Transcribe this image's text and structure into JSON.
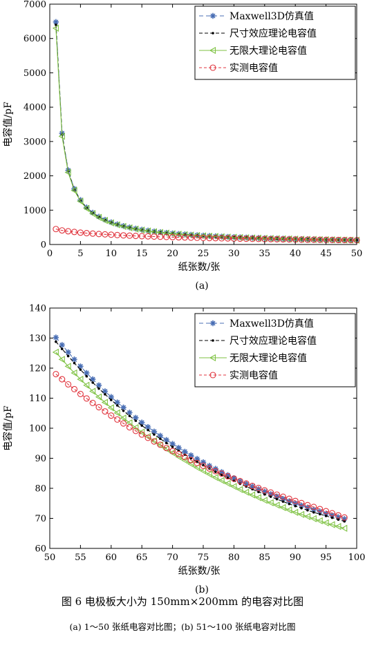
{
  "figure": {
    "caption": "图 6   电极板大小为 150mm×200mm 的电容对比图",
    "subcaption": "(a) 1～50 张纸电容对比图；(b) 51～100 张纸电容对比图"
  },
  "chart_data": [
    {
      "type": "line",
      "panel_label": "(a)",
      "xlabel": "纸张数/张",
      "ylabel": "电容值/pF",
      "xlim": [
        0,
        50
      ],
      "ylim": [
        0,
        7000
      ],
      "xticks": [
        0,
        5,
        10,
        15,
        20,
        25,
        30,
        35,
        40,
        45,
        50
      ],
      "yticks": [
        0,
        1000,
        2000,
        3000,
        4000,
        5000,
        6000,
        7000
      ],
      "legend_position": "top-right",
      "grid": false,
      "x": [
        1,
        2,
        3,
        4,
        5,
        6,
        7,
        8,
        9,
        10,
        11,
        12,
        13,
        14,
        15,
        16,
        17,
        18,
        19,
        20,
        21,
        22,
        23,
        24,
        25,
        26,
        27,
        28,
        29,
        30,
        31,
        32,
        33,
        34,
        35,
        36,
        37,
        38,
        39,
        40,
        41,
        42,
        43,
        44,
        45,
        46,
        47,
        48,
        49,
        50
      ],
      "series": [
        {
          "name": "Maxwell3D仿真值",
          "color": "#4a6fb5",
          "dash": "6,4",
          "marker": "star",
          "values": [
            6480,
            3240,
            2160,
            1620,
            1296,
            1080,
            926,
            810,
            720,
            648,
            589,
            540,
            498,
            463,
            432,
            405,
            381,
            360,
            341,
            324,
            309,
            295,
            282,
            270,
            259,
            249,
            240,
            231,
            223,
            216,
            209,
            203,
            196,
            191,
            185,
            180,
            175,
            171,
            166,
            162,
            158,
            154,
            151,
            147,
            144,
            141,
            138,
            135,
            132,
            130
          ]
        },
        {
          "name": "尺寸效应理论电容值",
          "color": "#000000",
          "dash": "5,3",
          "marker": "dot",
          "values": [
            6400,
            3200,
            2133,
            1600,
            1280,
            1067,
            914,
            800,
            711,
            640,
            582,
            533,
            492,
            457,
            427,
            400,
            376,
            356,
            337,
            320,
            305,
            291,
            278,
            267,
            256,
            246,
            237,
            229,
            221,
            213,
            206,
            200,
            194,
            188,
            183,
            178,
            173,
            168,
            164,
            160,
            156,
            152,
            149,
            145,
            142,
            139,
            136,
            133,
            131,
            128
          ]
        },
        {
          "name": "无限大理论电容值",
          "color": "#7ec242",
          "dash": "",
          "marker": "triangle-left",
          "values": [
            6300,
            3150,
            2100,
            1575,
            1260,
            1050,
            900,
            788,
            700,
            630,
            573,
            525,
            485,
            450,
            420,
            394,
            371,
            350,
            332,
            315,
            300,
            286,
            274,
            263,
            252,
            242,
            233,
            225,
            217,
            210,
            203,
            197,
            191,
            185,
            180,
            175,
            170,
            166,
            162,
            158,
            154,
            150,
            147,
            143,
            140,
            137,
            134,
            131,
            129,
            126
          ]
        },
        {
          "name": "实测电容值",
          "color": "#e0333c",
          "dash": "4,3",
          "marker": "circle",
          "values": [
            450,
            410,
            385,
            365,
            345,
            330,
            318,
            305,
            295,
            285,
            275,
            266,
            258,
            250,
            243,
            237,
            231,
            225,
            220,
            214,
            209,
            204,
            200,
            196,
            192,
            188,
            184,
            181,
            177,
            174,
            171,
            168,
            165,
            162,
            159,
            156,
            153,
            151,
            148,
            146,
            143,
            141,
            139,
            137,
            135,
            133,
            131,
            129,
            127,
            125
          ]
        }
      ]
    },
    {
      "type": "line",
      "panel_label": "(b)",
      "xlabel": "纸张数/张",
      "ylabel": "电容值/pF",
      "xlim": [
        50,
        100
      ],
      "ylim": [
        60,
        140
      ],
      "xticks": [
        50,
        55,
        60,
        65,
        70,
        75,
        80,
        85,
        90,
        95,
        100
      ],
      "yticks": [
        60,
        70,
        80,
        90,
        100,
        110,
        120,
        130,
        140
      ],
      "legend_position": "top-right",
      "grid": false,
      "x": [
        51,
        52,
        53,
        54,
        55,
        56,
        57,
        58,
        59,
        60,
        61,
        62,
        63,
        64,
        65,
        66,
        67,
        68,
        69,
        70,
        71,
        72,
        73,
        74,
        75,
        76,
        77,
        78,
        79,
        80,
        81,
        82,
        83,
        84,
        85,
        86,
        87,
        88,
        89,
        90,
        91,
        92,
        93,
        94,
        95,
        96,
        97,
        98
      ],
      "series": [
        {
          "name": "Maxwell3D仿真值",
          "color": "#4a6fb5",
          "dash": "6,4",
          "marker": "star",
          "values": [
            130.2,
            127.7,
            125.3,
            122.9,
            120.6,
            118.4,
            116.3,
            114.3,
            112.3,
            110.4,
            108.6,
            106.9,
            105.2,
            103.5,
            101.9,
            100.4,
            98.9,
            97.5,
            96.1,
            94.8,
            93.5,
            92.2,
            91.0,
            89.8,
            88.7,
            87.5,
            86.5,
            85.4,
            84.4,
            83.4,
            82.4,
            81.5,
            80.6,
            79.7,
            78.9,
            78.1,
            77.3,
            76.5,
            75.7,
            75.0,
            74.3,
            73.6,
            72.9,
            72.3,
            71.6,
            71.0,
            70.4,
            69.8
          ]
        },
        {
          "name": "尺寸效应理论电容值",
          "color": "#000000",
          "dash": "5,3",
          "marker": "dot",
          "values": [
            128.8,
            126.4,
            124.0,
            121.7,
            119.5,
            117.3,
            115.2,
            113.2,
            111.3,
            109.4,
            107.6,
            105.8,
            104.1,
            102.5,
            100.9,
            99.4,
            97.9,
            96.5,
            95.1,
            93.8,
            92.5,
            91.2,
            90.0,
            88.8,
            87.7,
            86.6,
            85.5,
            84.5,
            83.5,
            82.5,
            81.5,
            80.6,
            79.7,
            78.8,
            78.0,
            77.2,
            76.4,
            75.6,
            74.8,
            74.1,
            73.4,
            72.7,
            72.0,
            71.4,
            70.8,
            70.2,
            69.6,
            69.0
          ]
        },
        {
          "name": "无限大理论电容值",
          "color": "#7ec242",
          "dash": "",
          "marker": "triangle-left",
          "values": [
            125.3,
            122.9,
            120.6,
            118.4,
            116.3,
            114.3,
            112.3,
            110.4,
            108.6,
            106.8,
            105.1,
            103.4,
            101.8,
            100.2,
            98.7,
            97.2,
            95.8,
            94.4,
            93.1,
            91.8,
            90.5,
            89.3,
            88.1,
            86.9,
            85.8,
            84.7,
            83.6,
            82.6,
            81.6,
            80.6,
            79.6,
            78.7,
            77.8,
            76.9,
            76.0,
            75.2,
            74.4,
            73.6,
            72.8,
            72.0,
            71.3,
            70.6,
            69.9,
            69.2,
            68.5,
            67.9,
            67.3,
            66.7
          ]
        },
        {
          "name": "实测电容值",
          "color": "#e0333c",
          "dash": "4,3",
          "marker": "circle",
          "values": [
            118.0,
            116.3,
            114.6,
            113.0,
            111.4,
            109.9,
            108.4,
            107.0,
            105.6,
            104.2,
            102.9,
            101.6,
            100.3,
            99.1,
            97.9,
            96.8,
            95.6,
            94.5,
            93.4,
            92.4,
            91.4,
            90.4,
            89.4,
            88.4,
            87.5,
            86.6,
            85.7,
            84.9,
            84.0,
            83.2,
            82.4,
            81.6,
            80.8,
            80.1,
            79.3,
            78.6,
            77.9,
            77.2,
            76.5,
            75.8,
            75.1,
            74.4,
            73.8,
            73.1,
            72.4,
            71.7,
            71.0,
            70.3
          ]
        }
      ]
    }
  ]
}
